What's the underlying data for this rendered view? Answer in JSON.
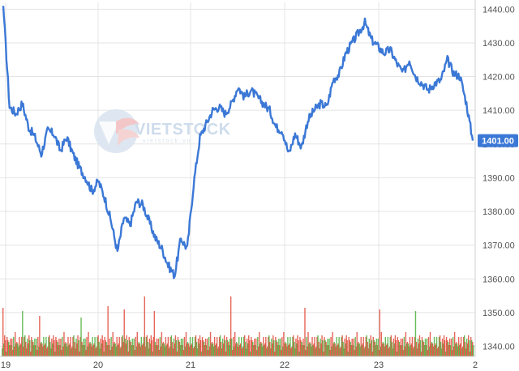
{
  "watermark": {
    "brand": "VIETSTOCK",
    "tagline": "vietstock.vn",
    "logo": "vietstock-logo-icon"
  },
  "colors": {
    "line": "#3b78d6",
    "volume_up": "#4caf3c",
    "volume_down": "#e04a3a",
    "grid": "#e4e4e4",
    "last_price_bg": "#3b78d6"
  },
  "chart_data": {
    "type": "line",
    "title": "",
    "xlabel": "",
    "ylabel": "",
    "x_ticks": [
      "19",
      "20",
      "21",
      "22",
      "23",
      "2"
    ],
    "y_ticks": [
      "1340.00",
      "1350.00",
      "1360.00",
      "1370.00",
      "1380.00",
      "1390.00",
      "1400.00",
      "1410.00",
      "1420.00",
      "1430.00",
      "1440.00"
    ],
    "ylim": [
      1337,
      1442
    ],
    "last_price": "1401.00",
    "grid": true,
    "series": [
      {
        "values": [
          1441,
          1411,
          1409,
          1412,
          1405,
          1402,
          1397,
          1404,
          1403,
          1398,
          1402,
          1397,
          1393,
          1390,
          1386,
          1389,
          1384,
          1377,
          1368,
          1378,
          1376,
          1383,
          1382,
          1377,
          1372,
          1369,
          1364,
          1361,
          1372,
          1369,
          1388,
          1402,
          1406,
          1410,
          1411,
          1409,
          1412,
          1417,
          1414,
          1416,
          1414,
          1412,
          1410,
          1405,
          1404,
          1397,
          1403,
          1399,
          1407,
          1410,
          1412,
          1411,
          1419,
          1421,
          1427,
          1430,
          1433,
          1436,
          1431,
          1429,
          1427,
          1428,
          1424,
          1421,
          1425,
          1420,
          1418,
          1416,
          1418,
          1419,
          1425,
          1421,
          1420,
          1412,
          1401
        ]
      }
    ],
    "volume": {
      "pattern_values": [
        5,
        9,
        4,
        12,
        7,
        3,
        10,
        6,
        8,
        4,
        11,
        5,
        7,
        3,
        9,
        6,
        13,
        4,
        8,
        5,
        6,
        10,
        3,
        7,
        9,
        5,
        4,
        8,
        12,
        6
      ],
      "spikes": [
        {
          "index": 1,
          "value": 30
        },
        {
          "index": 25,
          "value": 28
        },
        {
          "index": 46,
          "value": 25
        },
        {
          "index": 97,
          "value": 24
        },
        {
          "index": 130,
          "value": 31
        },
        {
          "index": 150,
          "value": 29
        },
        {
          "index": 175,
          "value": 37
        },
        {
          "index": 187,
          "value": 28
        },
        {
          "index": 281,
          "value": 37
        },
        {
          "index": 372,
          "value": 30
        },
        {
          "index": 464,
          "value": 29
        },
        {
          "index": 508,
          "value": 28
        }
      ]
    }
  }
}
